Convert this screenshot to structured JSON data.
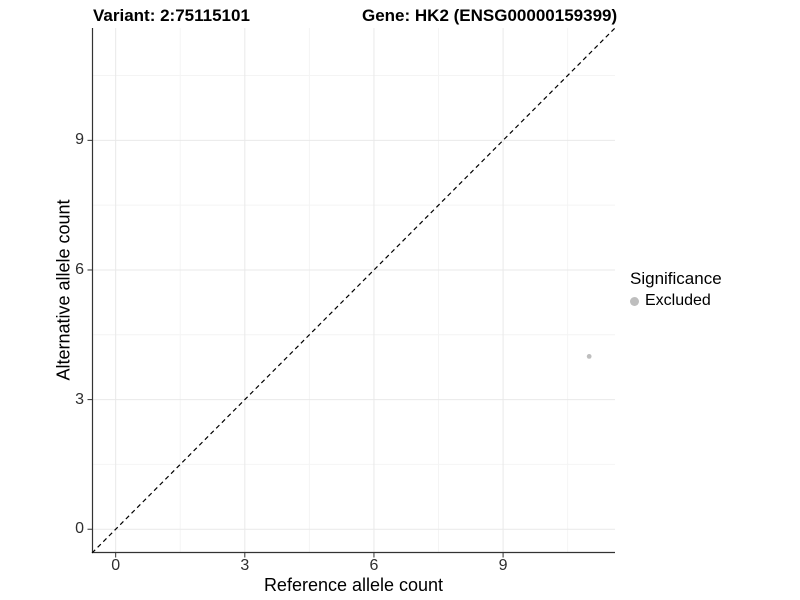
{
  "titles": {
    "variant": "Variant: 2:75115101",
    "gene": "Gene: HK2 (ENSG00000159399)"
  },
  "chart_data": {
    "type": "scatter",
    "title_left": "Variant: 2:75115101",
    "title_right": "Gene: HK2 (ENSG00000159399)",
    "xlabel": "Reference allele count",
    "ylabel": "Alternative allele count",
    "xlim": [
      -0.55,
      11.6
    ],
    "ylim": [
      -0.55,
      11.6
    ],
    "x_ticks": [
      0,
      3,
      6,
      9
    ],
    "y_ticks": [
      0,
      3,
      6,
      9
    ],
    "x_minor_ticks": [
      1.5,
      4.5,
      7.5,
      10.5
    ],
    "y_minor_ticks": [
      1.5,
      4.5,
      7.5,
      10.5
    ],
    "grid": "major+minor",
    "points": [
      {
        "x": 11,
        "y": 4,
        "significance": "Excluded"
      }
    ],
    "reference_line": {
      "slope": 1,
      "intercept": 0,
      "style": "dashed",
      "color": "#000000"
    },
    "legend": {
      "title": "Significance",
      "position": "right",
      "entries": [
        {
          "label": "Excluded",
          "color": "#BEBEBE"
        }
      ]
    },
    "colors": {
      "point": "#BEBEBE",
      "grid_major": "#e9e9e9",
      "grid_minor": "#f4f4f4",
      "axis_line": "#333333",
      "tick_mark": "#333333",
      "tick_text": "#2e2e2e"
    }
  }
}
